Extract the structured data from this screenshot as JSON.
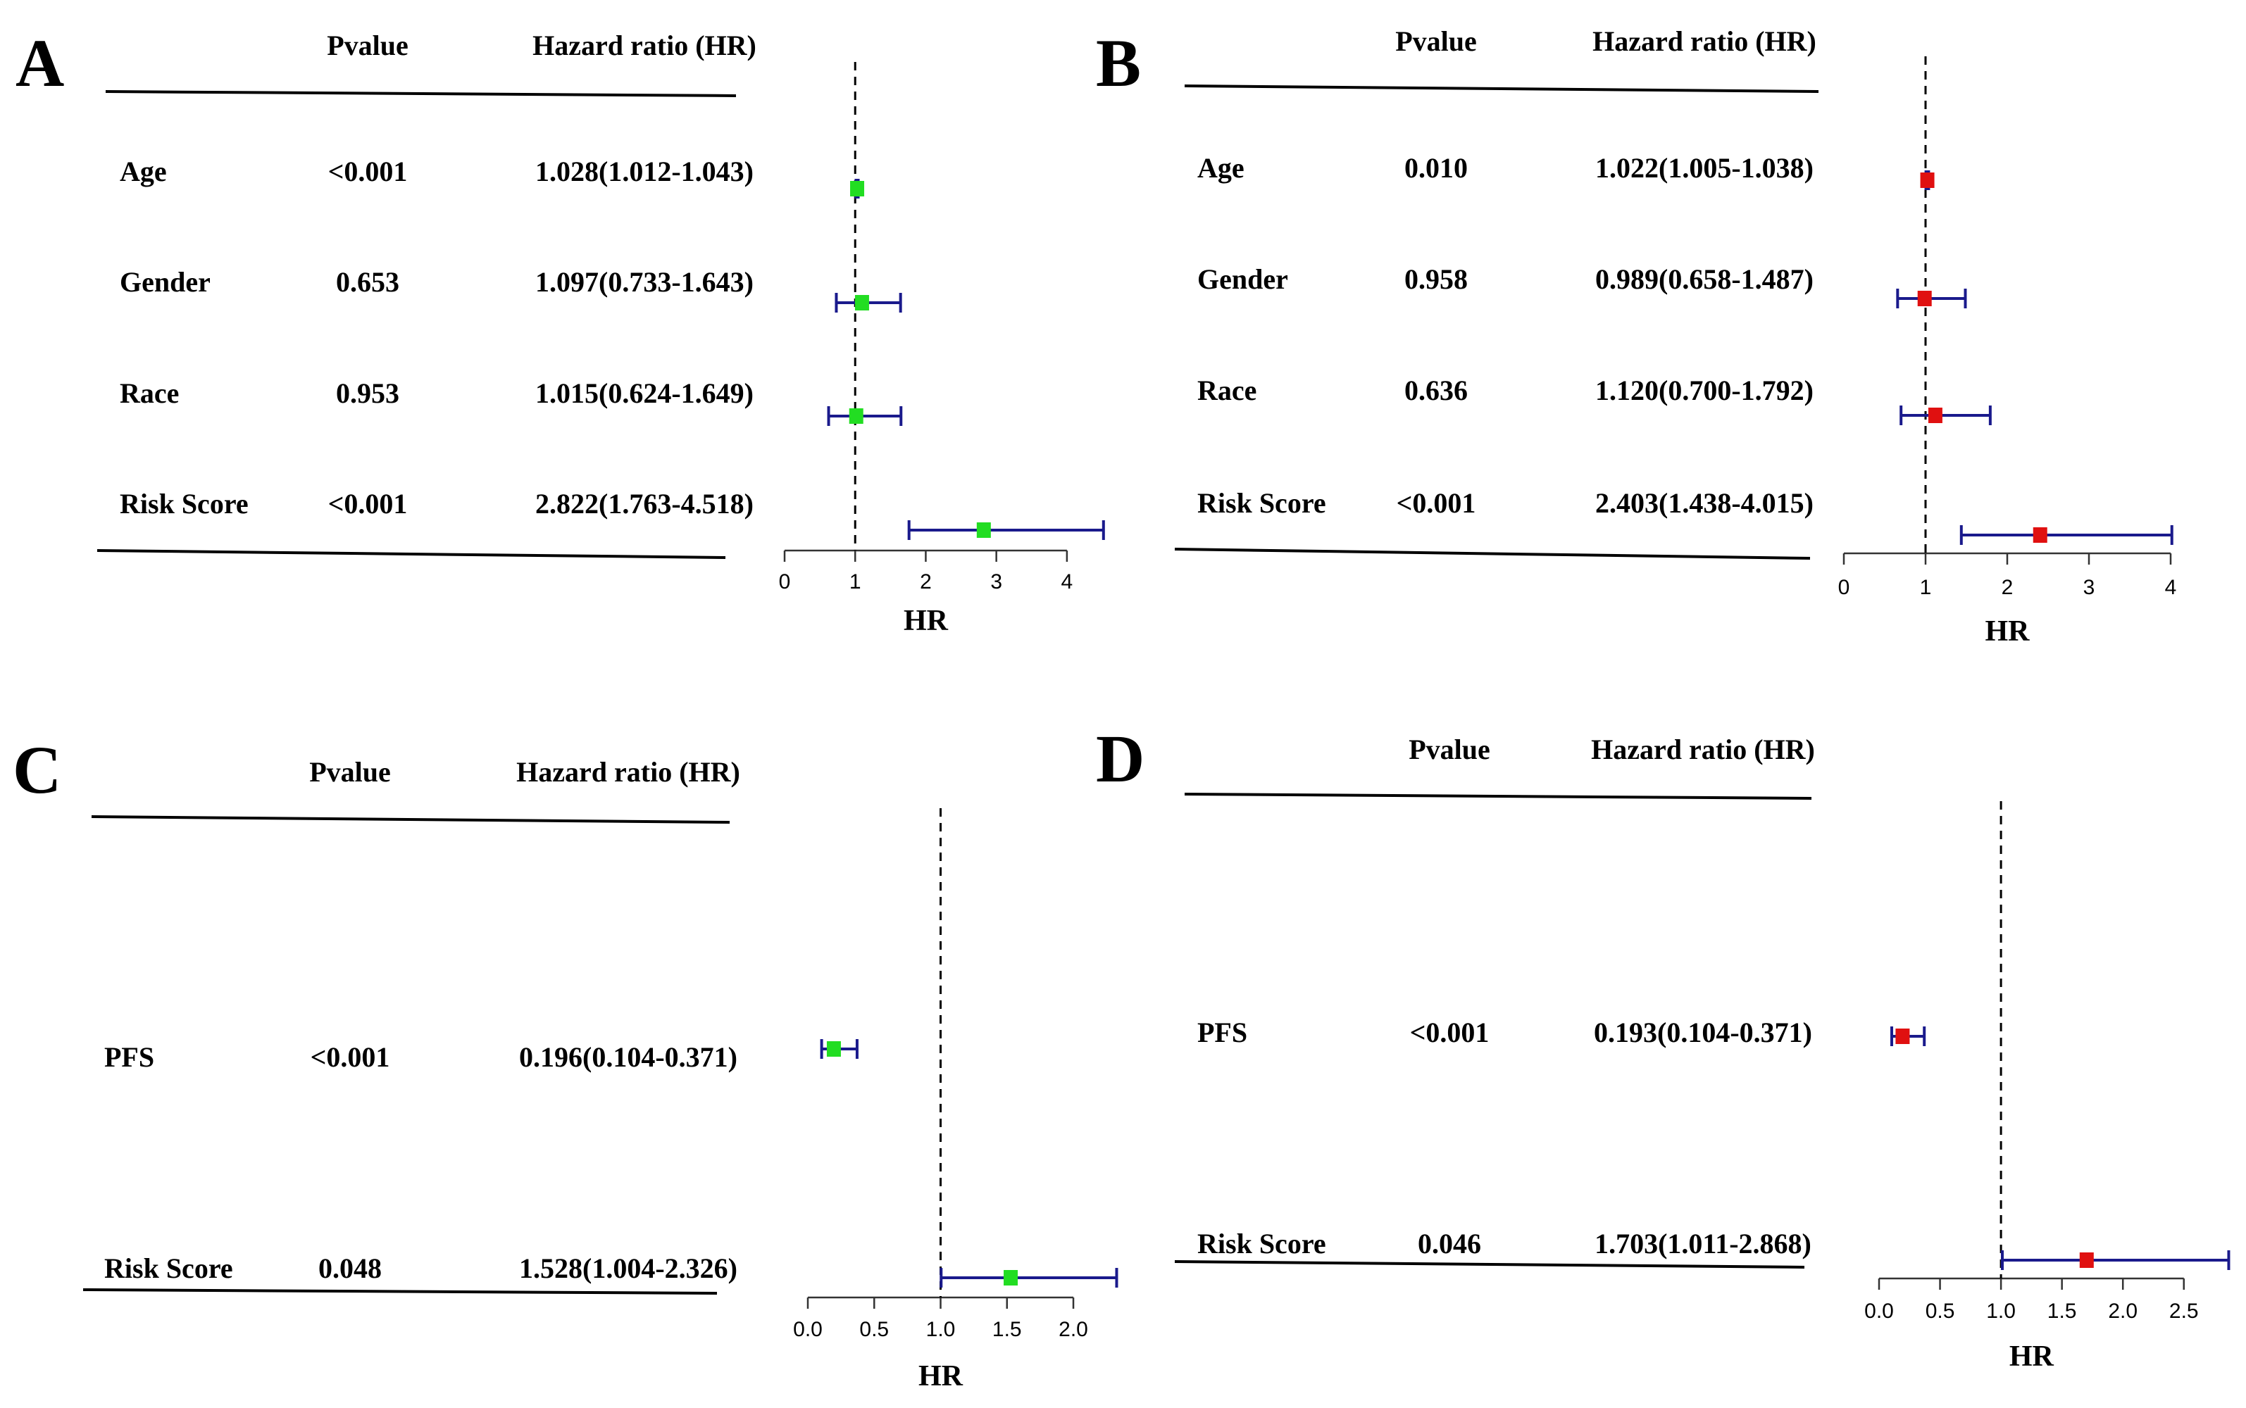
{
  "colors": {
    "text": "#000000",
    "ci_line": "#1a1a8c",
    "marker_green": "#22dd22",
    "marker_red": "#e01010",
    "rule": "#000000",
    "reference_line": "#000000"
  },
  "chart_data": [
    {
      "type": "forest",
      "panel": "A",
      "headers": {
        "pvalue": "Pvalue",
        "hr": "Hazard ratio (HR)"
      },
      "rows": [
        {
          "label": "Age",
          "pvalue": "<0.001",
          "hr_text": "1.028(1.012-1.043)",
          "hr": 1.028,
          "lower": 1.012,
          "upper": 1.043
        },
        {
          "label": "Gender",
          "pvalue": "0.653",
          "hr_text": "1.097(0.733-1.643)",
          "hr": 1.097,
          "lower": 0.733,
          "upper": 1.643
        },
        {
          "label": "Race",
          "pvalue": "0.953",
          "hr_text": "1.015(0.624-1.649)",
          "hr": 1.015,
          "lower": 0.624,
          "upper": 1.649
        },
        {
          "label": "Risk Score",
          "pvalue": "<0.001",
          "hr_text": "2.822(1.763-4.518)",
          "hr": 2.822,
          "lower": 1.763,
          "upper": 4.518
        }
      ],
      "xlabel": "HR",
      "xlim": [
        0,
        4.5
      ],
      "ticks": [
        0,
        1,
        2,
        3,
        4
      ],
      "tick_labels": [
        "0",
        "1",
        "2",
        "3",
        "4"
      ],
      "reference": 1,
      "marker_color": "green"
    },
    {
      "type": "forest",
      "panel": "B",
      "headers": {
        "pvalue": "Pvalue",
        "hr": "Hazard ratio (HR)"
      },
      "rows": [
        {
          "label": "Age",
          "pvalue": "0.010",
          "hr_text": "1.022(1.005-1.038)",
          "hr": 1.022,
          "lower": 1.005,
          "upper": 1.038
        },
        {
          "label": "Gender",
          "pvalue": "0.958",
          "hr_text": "0.989(0.658-1.487)",
          "hr": 0.989,
          "lower": 0.658,
          "upper": 1.487
        },
        {
          "label": "Race",
          "pvalue": "0.636",
          "hr_text": "1.120(0.700-1.792)",
          "hr": 1.12,
          "lower": 0.7,
          "upper": 1.792
        },
        {
          "label": "Risk Score",
          "pvalue": "<0.001",
          "hr_text": "2.403(1.438-4.015)",
          "hr": 2.403,
          "lower": 1.438,
          "upper": 4.015
        }
      ],
      "xlabel": "HR",
      "xlim": [
        0,
        4
      ],
      "ticks": [
        0,
        1,
        2,
        3,
        4
      ],
      "tick_labels": [
        "0",
        "1",
        "2",
        "3",
        "4"
      ],
      "reference": 1,
      "marker_color": "red"
    },
    {
      "type": "forest",
      "panel": "C",
      "headers": {
        "pvalue": "Pvalue",
        "hr": "Hazard ratio (HR)"
      },
      "rows": [
        {
          "label": "PFS",
          "pvalue": "<0.001",
          "hr_text": "0.196(0.104-0.371)",
          "hr": 0.196,
          "lower": 0.104,
          "upper": 0.371
        },
        {
          "label": "Risk Score",
          "pvalue": "0.048",
          "hr_text": "1.528(1.004-2.326)",
          "hr": 1.528,
          "lower": 1.004,
          "upper": 2.326
        }
      ],
      "xlabel": "HR",
      "xlim": [
        0,
        2.35
      ],
      "ticks": [
        0,
        0.5,
        1,
        1.5,
        2
      ],
      "tick_labels": [
        "0.0",
        "0.5",
        "1.0",
        "1.5",
        "2.0"
      ],
      "reference": 1,
      "marker_color": "green"
    },
    {
      "type": "forest",
      "panel": "D",
      "headers": {
        "pvalue": "Pvalue",
        "hr": "Hazard ratio (HR)"
      },
      "rows": [
        {
          "label": "PFS",
          "pvalue": "<0.001",
          "hr_text": "0.193(0.104-0.371)",
          "hr": 0.193,
          "lower": 0.104,
          "upper": 0.371
        },
        {
          "label": "Risk Score",
          "pvalue": "0.046",
          "hr_text": "1.703(1.011-2.868)",
          "hr": 1.703,
          "lower": 1.011,
          "upper": 2.868
        }
      ],
      "xlabel": "HR",
      "xlim": [
        0,
        2.9
      ],
      "ticks": [
        0,
        0.5,
        1,
        1.5,
        2,
        2.5
      ],
      "tick_labels": [
        "0.0",
        "0.5",
        "1.0",
        "1.5",
        "2.0",
        "2.5"
      ],
      "reference": 1,
      "marker_color": "red"
    }
  ]
}
